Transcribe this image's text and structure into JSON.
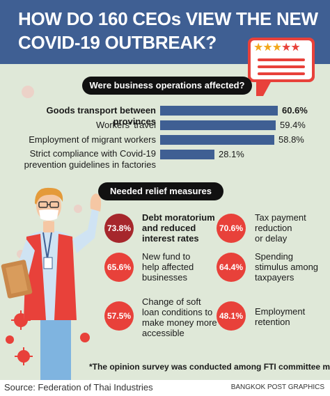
{
  "title_lines": [
    "HOW DO 160 CEOs VIEW THE NEW",
    "COVID-19 OUTBREAK?"
  ],
  "section1_title": "Were business operations affected?",
  "section2_title": "Needed relief measures",
  "chart_data": [
    {
      "type": "bar",
      "title": "Were business operations affected?",
      "categories": [
        "Goods transport between provinces",
        "Workers' travel",
        "Employment of migrant workers",
        "Strict compliance with Covid-19 prevention guidelines in factories"
      ],
      "values": [
        60.6,
        59.4,
        58.8,
        28.1
      ],
      "value_labels": [
        "60.6%",
        "59.4%",
        "58.8%",
        "28.1%"
      ],
      "bar_color": "#3f5f93"
    },
    {
      "type": "table",
      "title": "Needed relief measures",
      "items": [
        {
          "value": 73.8,
          "label": "73.8%",
          "text": "Debt moratorium and reduced interest rates"
        },
        {
          "value": 70.6,
          "label": "70.6%",
          "text": "Tax payment reduction or delay"
        },
        {
          "value": 65.6,
          "label": "65.6%",
          "text": "New fund to help affected businesses"
        },
        {
          "value": 64.4,
          "label": "64.4%",
          "text": "Spending stimulus among taxpayers"
        },
        {
          "value": 57.5,
          "label": "57.5%",
          "text": "Change of soft loan conditions to make money more accessible"
        },
        {
          "value": 48.1,
          "label": "48.1%",
          "text": "Employment retention"
        }
      ]
    }
  ],
  "bar_label_lines": [
    [
      "Goods transport between provinces"
    ],
    [
      "Workers' travel"
    ],
    [
      "Employment of migrant workers"
    ],
    [
      "Strict compliance with Covid-19",
      "prevention guidelines in factories"
    ]
  ],
  "relief_lines": [
    [
      "Debt moratorium",
      "and reduced",
      "interest rates"
    ],
    [
      "Tax payment",
      "reduction",
      "or delay"
    ],
    [
      "New fund to",
      "help affected",
      "businesses"
    ],
    [
      "Spending",
      "stimulus among",
      "taxpayers"
    ],
    [
      "Change of soft",
      "loan conditions to",
      "make money more",
      "accessible"
    ],
    [
      "Employment",
      "retention"
    ]
  ],
  "stars": {
    "filled": 3,
    "total": 5
  },
  "footnote": "*The opinion survey was conducted among FTI committee members.",
  "source": "Source: Federation of Thai Industries",
  "credit": "BANGKOK POST GRAPHICS",
  "colors": {
    "background": "#dfe8d8",
    "header": "#3f5f93",
    "bar": "#3f5f93",
    "accent_red": "#e8413a",
    "dark_red": "#a6272c",
    "star": "#f2a71b"
  }
}
